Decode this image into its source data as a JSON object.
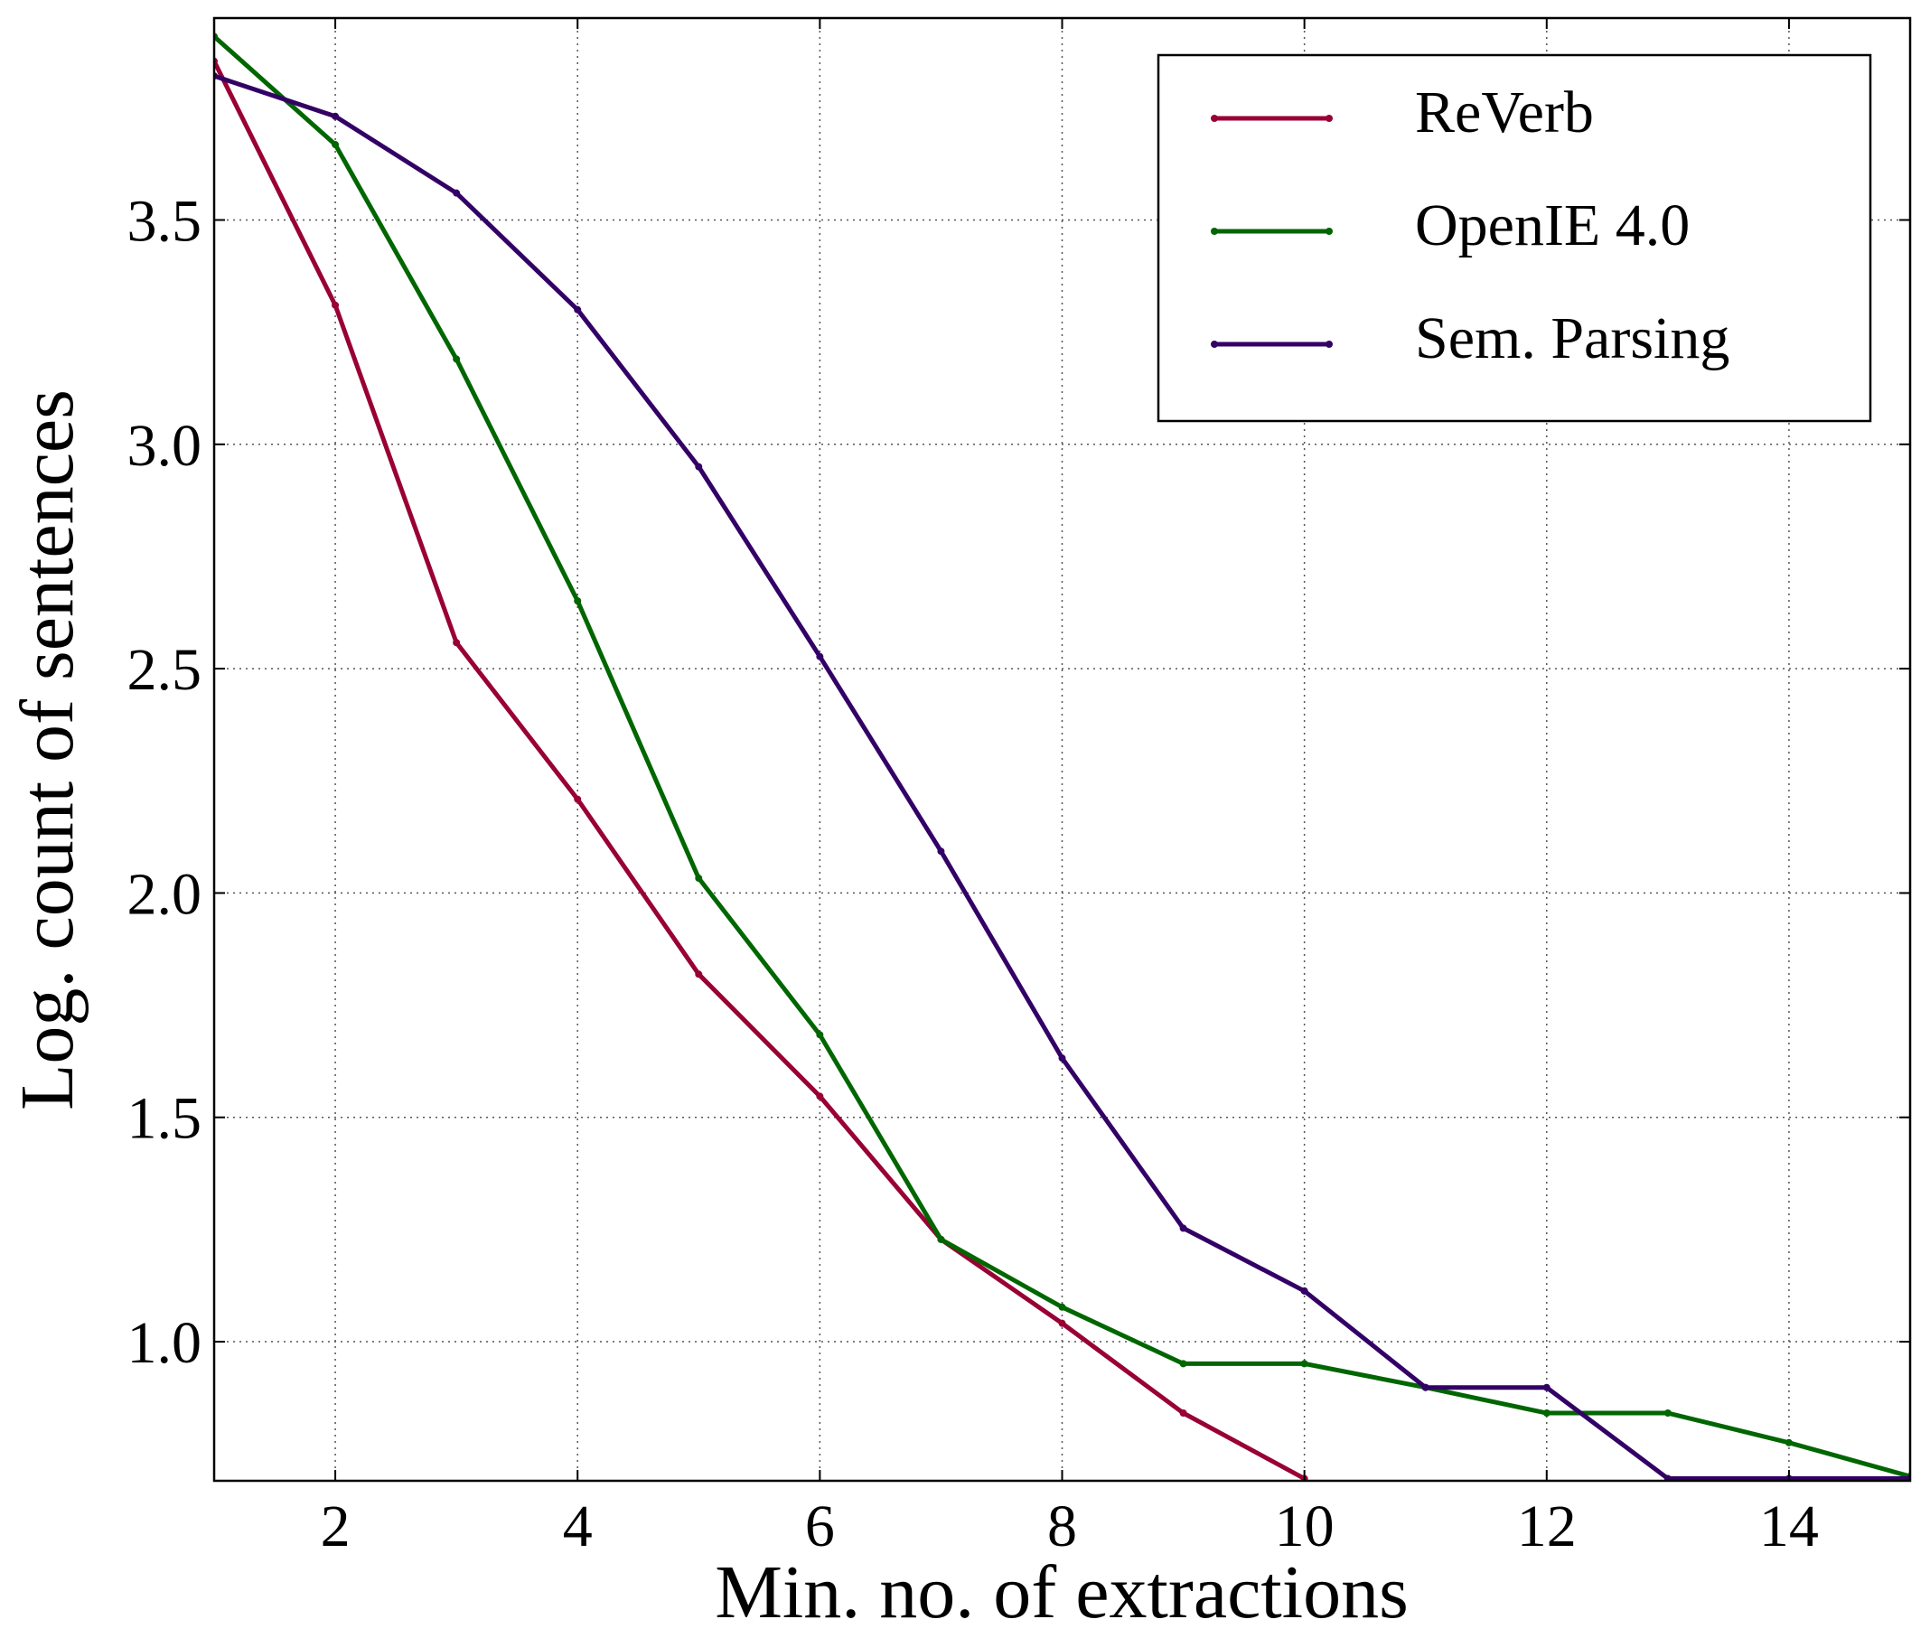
{
  "chart_data": {
    "type": "line",
    "x_label": "Min. no. of extractions",
    "y_label": "Log. count of sentences",
    "x": [
      1,
      2,
      3,
      4,
      5,
      6,
      7,
      8,
      9,
      10,
      11,
      12,
      13,
      14,
      15
    ],
    "series": [
      {
        "name": "ReVerb",
        "color": "#990033",
        "values": [
          3.854,
          3.31,
          2.558,
          2.209,
          1.819,
          1.547,
          1.228,
          1.041,
          0.841,
          0.695,
          null,
          null,
          null,
          null,
          null
        ]
      },
      {
        "name": "OpenIE 4.0",
        "color": "#006600",
        "values": [
          3.909,
          3.668,
          3.19,
          2.651,
          2.033,
          1.684,
          1.228,
          1.077,
          0.951,
          0.951,
          0.898,
          0.841,
          0.841,
          0.775,
          0.7
        ]
      },
      {
        "name": "Sem. Parsing",
        "color": "#330066",
        "values": [
          3.821,
          3.731,
          3.56,
          3.3,
          2.95,
          2.527,
          2.093,
          1.632,
          1.253,
          1.113,
          0.898,
          0.898,
          0.695,
          0.695,
          0.695
        ]
      }
    ],
    "xlim": [
      1,
      15
    ],
    "ylim": [
      0.69,
      3.95
    ],
    "xticks": [
      2,
      4,
      6,
      8,
      10,
      12,
      14
    ],
    "yticks": [
      {
        "value": 1.0,
        "label": "1.0"
      },
      1.5,
      {
        "value": 2.0,
        "label": "2.0"
      },
      2.5,
      {
        "value": 3.0,
        "label": "3.0"
      },
      3.5
    ],
    "grid": true,
    "legend": "upper right"
  }
}
